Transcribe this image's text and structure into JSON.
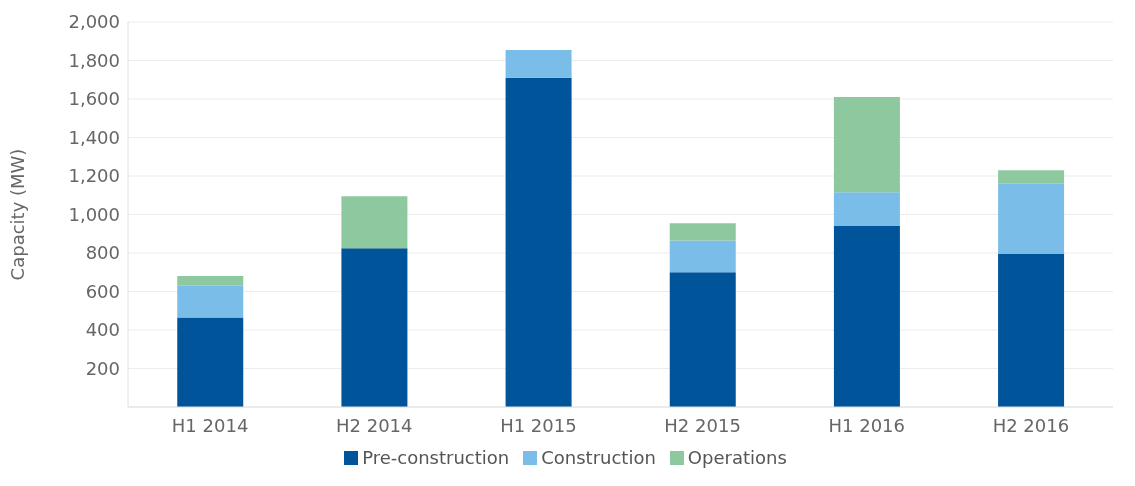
{
  "chart_data": {
    "type": "bar",
    "stacked": true,
    "ylabel": "Capacity (MW)",
    "categories": [
      "H1 2014",
      "H2 2014",
      "H1 2015",
      "H2 2015",
      "H1 2016",
      "H2 2016"
    ],
    "series": [
      {
        "name": "Pre-construction",
        "color": "#00549a",
        "values": [
          465,
          825,
          1710,
          700,
          940,
          795
        ]
      },
      {
        "name": "Construction",
        "color": "#7abde8",
        "values": [
          165,
          0,
          145,
          165,
          175,
          365
        ]
      },
      {
        "name": "Operations",
        "color": "#8dc89e",
        "values": [
          50,
          270,
          0,
          90,
          495,
          70
        ]
      }
    ],
    "ylim": [
      0,
      2000
    ],
    "yticks": [
      {
        "value": 0,
        "label": null
      },
      200,
      400,
      600,
      800,
      {
        "value": 1000,
        "label": "1,000"
      },
      {
        "value": 1200,
        "label": "1,200"
      },
      {
        "value": 1400,
        "label": "1,400"
      },
      {
        "value": 1600,
        "label": "1,600"
      },
      {
        "value": 1800,
        "label": "1,800"
      },
      {
        "value": 2000,
        "label": "2,000"
      }
    ],
    "grid": "y",
    "legend": "bottom"
  }
}
